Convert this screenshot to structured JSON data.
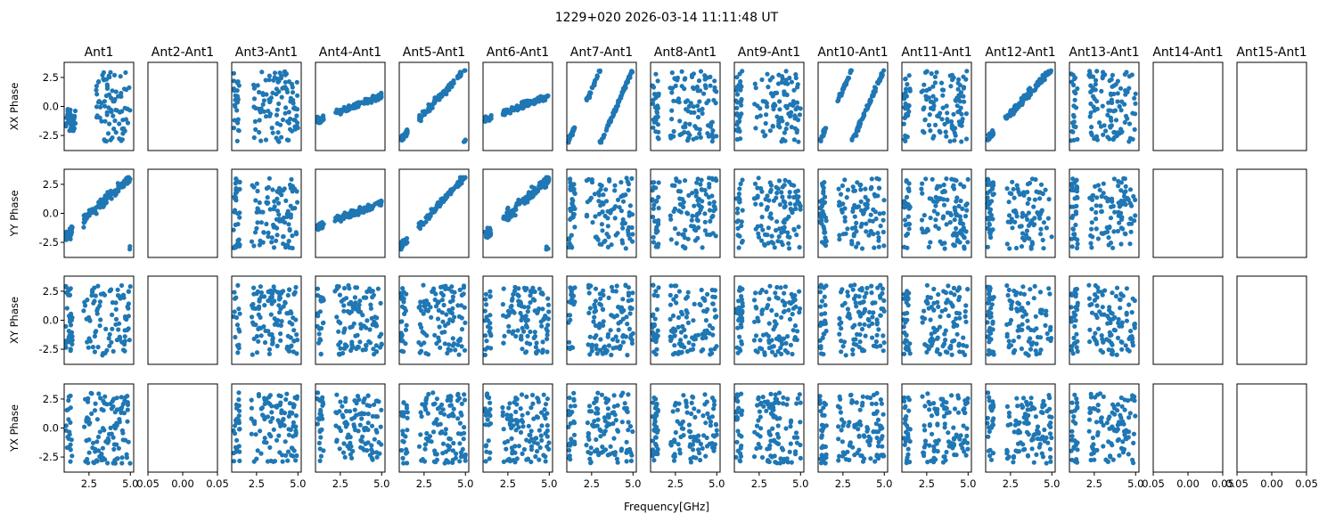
{
  "chart_data": {
    "type": "scatter",
    "title": "1229+020 2026-03-14 11:11:48 UT",
    "xlabel": "Frequency[GHz]",
    "rows": [
      "XX Phase",
      "YY Phase",
      "XY Phase",
      "YX Phase"
    ],
    "columns": [
      "Ant1",
      "Ant2-Ant1",
      "Ant3-Ant1",
      "Ant4-Ant1",
      "Ant5-Ant1",
      "Ant6-Ant1",
      "Ant7-Ant1",
      "Ant8-Ant1",
      "Ant9-Ant1",
      "Ant10-Ant1",
      "Ant11-Ant1",
      "Ant12-Ant1",
      "Ant13-Ant1",
      "Ant14-Ant1",
      "Ant15-Ant1"
    ],
    "empty_columns": [
      1,
      13,
      14
    ],
    "xlim": [
      1.0,
      5.2
    ],
    "ylim": [
      -3.8,
      3.8
    ],
    "x_ticks": [
      "2.5",
      "5.0"
    ],
    "y_ticks": [
      "2.5",
      "0.0",
      "-2.5"
    ],
    "empty_x_ticks": [
      "0.05",
      "0.00",
      "0.05"
    ],
    "marker_color": "#1f77b4",
    "grid": false,
    "n_points_per_panel": 130,
    "freq_range_ghz": [
      1.1,
      5.0
    ],
    "panel_patterns": [
      [
        "cluster-left",
        "empty",
        "random",
        "linear-flat",
        "linear-steep",
        "linear-flat",
        "wrapping-lines",
        "random",
        "random",
        "wrapping-lines",
        "random",
        "linear-steep",
        "random",
        "empty",
        "empty"
      ],
      [
        "rising-wrap",
        "empty",
        "random",
        "linear-flat",
        "linear-steep",
        "rising-wrap",
        "random",
        "random",
        "random",
        "random",
        "random",
        "random",
        "random",
        "empty",
        "empty"
      ],
      [
        "random",
        "empty",
        "random",
        "random",
        "random",
        "random",
        "random",
        "random",
        "random",
        "random",
        "random",
        "random",
        "random",
        "empty",
        "empty"
      ],
      [
        "random",
        "empty",
        "random",
        "random",
        "random",
        "random",
        "random",
        "random",
        "random",
        "random",
        "random",
        "random",
        "random",
        "empty",
        "empty"
      ]
    ]
  }
}
